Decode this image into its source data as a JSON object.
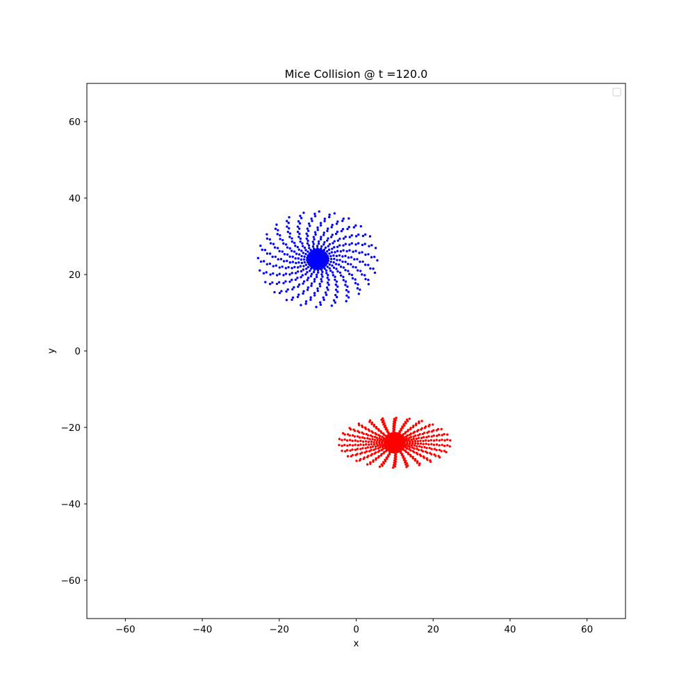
{
  "chart_data": {
    "type": "scatter",
    "title": "Mice Collision @ t =120.0",
    "xlabel": "x",
    "ylabel": "y",
    "xlim": [
      -70,
      70
    ],
    "ylim": [
      -70,
      70
    ],
    "xticks": [
      -60,
      -40,
      -20,
      0,
      20,
      40,
      60
    ],
    "yticks": [
      -60,
      -40,
      -20,
      0,
      20,
      40,
      60
    ],
    "xtick_labels": [
      "−60",
      "−40",
      "−20",
      "0",
      "20",
      "40",
      "60"
    ],
    "ytick_labels": [
      "−60",
      "−40",
      "−20",
      "0",
      "20",
      "40",
      "60"
    ],
    "grid": false,
    "legend": {
      "placement": "upper right",
      "entries": []
    },
    "galaxies": [
      {
        "color": "#0000ff",
        "core": {
          "x": -10,
          "y": 24
        },
        "disk": {
          "semi_x": 15.5,
          "semi_y": 12.5,
          "rings": 18,
          "points_per_ring": 24,
          "twist": 0.9
        }
      },
      {
        "color": "#ff0000",
        "core": {
          "x": 10,
          "y": -24
        },
        "disk": {
          "semi_x": 14.5,
          "semi_y": 6.5,
          "rings": 18,
          "points_per_ring": 26,
          "twist": 1.1
        }
      }
    ]
  }
}
